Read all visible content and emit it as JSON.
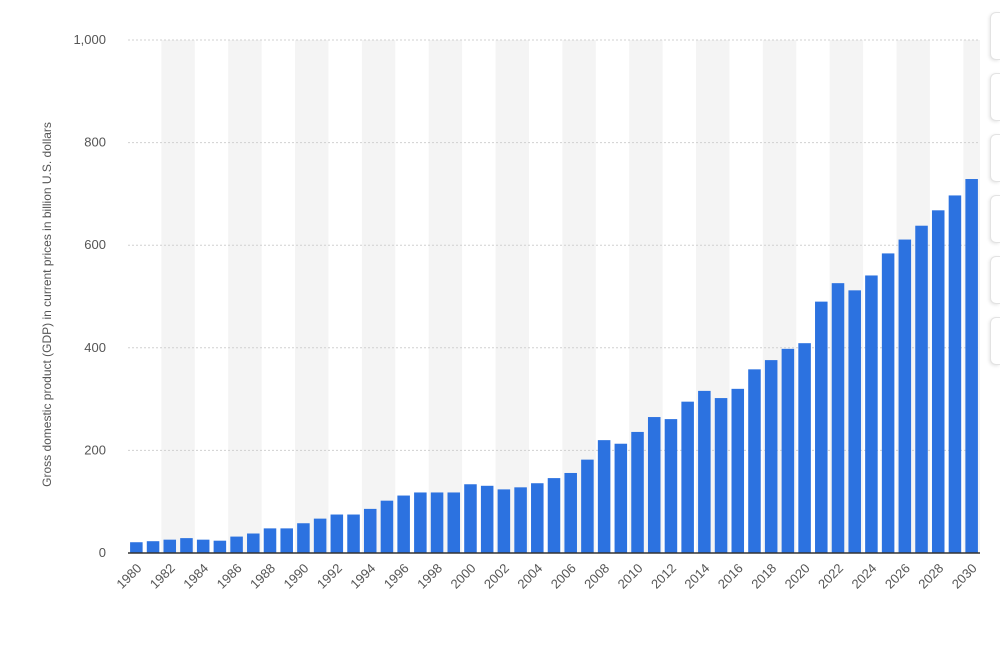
{
  "chart_data": {
    "type": "bar",
    "ylabel": "Gross domestic product (GDP) in current prices in billion U.S. dollars",
    "xlabel": "",
    "ylim": [
      0,
      1000
    ],
    "yticks": [
      0,
      200,
      400,
      600,
      800,
      1000
    ],
    "ytick_labels": [
      "0",
      "200",
      "400",
      "600",
      "800",
      "1,000"
    ],
    "grid": "horizontal dotted",
    "categories": [
      "1980",
      "1981",
      "1982",
      "1983",
      "1984",
      "1985",
      "1986",
      "1987",
      "1988",
      "1989",
      "1990",
      "1991",
      "1992",
      "1993",
      "1994",
      "1995",
      "1996",
      "1997",
      "1998",
      "1999",
      "2000",
      "2001",
      "2002",
      "2003",
      "2004",
      "2005",
      "2006",
      "2007",
      "2008",
      "2009",
      "2010",
      "2011",
      "2012",
      "2013",
      "2014",
      "2015",
      "2016",
      "2017",
      "2018",
      "2019",
      "2020",
      "2021",
      "2022",
      "2023",
      "2024",
      "2025",
      "2026",
      "2027",
      "2028",
      "2029",
      "2030"
    ],
    "xtick_labels": [
      "1980",
      "1982",
      "1984",
      "1986",
      "1988",
      "1990",
      "1992",
      "1994",
      "1996",
      "1998",
      "2000",
      "2002",
      "2004",
      "2006",
      "2008",
      "2010",
      "2012",
      "2014",
      "2016",
      "2018",
      "2020",
      "2022",
      "2024",
      "2026",
      "2028",
      "2030"
    ],
    "values": [
      21,
      23,
      26,
      29,
      26,
      24,
      32,
      38,
      48,
      48,
      58,
      67,
      75,
      75,
      86,
      102,
      112,
      118,
      118,
      118,
      134,
      131,
      124,
      128,
      136,
      146,
      156,
      182,
      220,
      213,
      236,
      265,
      261,
      295,
      316,
      302,
      320,
      358,
      376,
      398,
      409,
      490,
      526,
      512,
      541,
      584,
      611,
      638,
      668,
      697,
      729
    ],
    "colors": {
      "bar": "#2c72e0",
      "band": "#f4f4f4",
      "grid": "#d0d0d0",
      "axis": "#333333"
    }
  },
  "side_panel": {
    "tab_count": 6
  }
}
